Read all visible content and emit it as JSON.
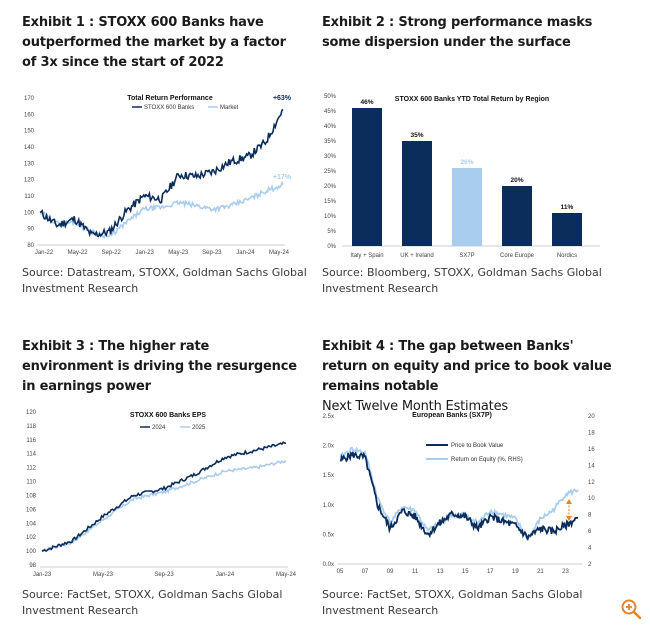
{
  "exhibits": [
    {
      "title": "Exhibit 1 : STOXX 600 Banks have outperformed the market by a factor of 3x since the start of 2022",
      "source": "Source: Datastream, STOXX, Goldman Sachs Global Investment Research"
    },
    {
      "title": "Exhibit 2 : Strong performance masks some dispersion under the surface",
      "source": "Source: Bloomberg, STOXX, Goldman Sachs Global Investment Research"
    },
    {
      "title": "Exhibit 3 : The higher rate environment is driving the resurgence in earnings power",
      "source": "Source: FactSet, STOXX, Goldman Sachs Global Investment Research"
    },
    {
      "title": "Exhibit 4 : The gap between Banks' return on equity and price to book value remains notable",
      "subtitle": "Next Twelve Month Estimates",
      "source": "Source: FactSet, STOXX, Goldman Sachs Global Investment Research"
    }
  ],
  "colors": {
    "navy": "#0b2d5b",
    "light_blue": "#a9cdef",
    "orange": "#e8832a",
    "title_text": "#1b1b1b",
    "zoom_icon": "#e8832a"
  },
  "zoom_icon": "zoom-in-icon",
  "chart_data": [
    {
      "type": "line",
      "title": "Total Return Performance",
      "ylim": [
        80,
        170
      ],
      "yticks": [
        "80",
        "90",
        "100",
        "110",
        "120",
        "130",
        "140",
        "150",
        "160",
        "170"
      ],
      "xticks": [
        "Jan-22",
        "May-22",
        "Sep-22",
        "Jan-23",
        "May-23",
        "Sep-23",
        "Jan-24",
        "May-24"
      ],
      "series": [
        {
          "name": "STOXX 600 Banks",
          "end_label": "+63%",
          "t": [
            0,
            2,
            4,
            6,
            8,
            10,
            12,
            14,
            16,
            18,
            20,
            22,
            24,
            26,
            28
          ],
          "values": [
            100,
            92,
            96,
            86,
            88,
            101,
            110,
            108,
            123,
            122,
            125,
            131,
            134,
            143,
            163
          ]
        },
        {
          "name": "Market",
          "end_label": "+17%",
          "t": [
            0,
            2,
            4,
            6,
            8,
            10,
            12,
            14,
            16,
            18,
            20,
            22,
            24,
            26,
            28
          ],
          "values": [
            100,
            93,
            94,
            88,
            85,
            94,
            102,
            103,
            106,
            104,
            102,
            104,
            108,
            113,
            117
          ]
        }
      ]
    },
    {
      "type": "bar",
      "title": "STOXX 600 Banks YTD Total Return by Region",
      "ylim": [
        0,
        50
      ],
      "yticks": [
        "0%",
        "5%",
        "10%",
        "15%",
        "20%",
        "25%",
        "30%",
        "35%",
        "40%",
        "45%",
        "50%"
      ],
      "categories": [
        "Italy + Spain",
        "UK + Ireland",
        "SX7P",
        "Core Europe",
        "Nordics"
      ],
      "values": [
        46,
        35,
        26,
        20,
        11
      ],
      "labels": [
        "46%",
        "35%",
        "26%",
        "20%",
        "11%"
      ],
      "highlight": "SX7P"
    },
    {
      "type": "line",
      "title": "STOXX 600 Banks EPS",
      "ylim": [
        98,
        120
      ],
      "yticks": [
        "98",
        "100",
        "102",
        "104",
        "106",
        "108",
        "110",
        "112",
        "114",
        "116",
        "118",
        "120"
      ],
      "xticks": [
        "Jan-23",
        "May-23",
        "Sep-23",
        "Jan-24",
        "May-24"
      ],
      "series": [
        {
          "name": "2024",
          "t": [
            0,
            2,
            4,
            6,
            8,
            10,
            12,
            14,
            16
          ],
          "values": [
            100,
            101.5,
            105,
            108,
            109,
            111,
            113.5,
            114.5,
            115.5
          ]
        },
        {
          "name": "2025",
          "t": [
            0,
            2,
            4,
            6,
            8,
            10,
            12,
            14,
            16
          ],
          "values": [
            100,
            101.3,
            104.5,
            107.5,
            108.5,
            110,
            111.5,
            112,
            113
          ]
        }
      ]
    },
    {
      "type": "line",
      "title": "European Banks (SX7P)",
      "ylim": [
        0,
        2.5
      ],
      "yticks": [
        "0.0x",
        "0.5x",
        "1.0x",
        "1.5x",
        "2.0x",
        "2.5x"
      ],
      "y2lim": [
        2,
        20
      ],
      "y2ticks": [
        "2",
        "4",
        "6",
        "8",
        "10",
        "12",
        "14",
        "16",
        "18",
        "20"
      ],
      "xticks": [
        "05",
        "07",
        "09",
        "11",
        "13",
        "15",
        "17",
        "19",
        "21",
        "23"
      ],
      "series": [
        {
          "name": "Price to Book Value",
          "axis": "left",
          "t": [
            2005,
            2006,
            2007,
            2008,
            2009,
            2010,
            2011,
            2012,
            2013,
            2014,
            2015,
            2016,
            2017,
            2018,
            2019,
            2020,
            2021,
            2022,
            2023,
            2024
          ],
          "values": [
            1.75,
            1.85,
            1.8,
            1.0,
            0.6,
            0.9,
            0.8,
            0.5,
            0.7,
            0.85,
            0.8,
            0.6,
            0.8,
            0.72,
            0.65,
            0.45,
            0.6,
            0.55,
            0.65,
            0.78
          ]
        },
        {
          "name": "Return on Equity (%, RHS)",
          "axis": "right",
          "t": [
            2005,
            2006,
            2007,
            2008,
            2009,
            2010,
            2011,
            2012,
            2013,
            2014,
            2015,
            2016,
            2017,
            2018,
            2019,
            2020,
            2021,
            2022,
            2023,
            2024
          ],
          "values": [
            15,
            16,
            15.5,
            10,
            7,
            9,
            8.5,
            6,
            7,
            8,
            8,
            7,
            8.5,
            8,
            7.5,
            5,
            7.5,
            8.5,
            10.5,
            11
          ]
        }
      ]
    }
  ]
}
